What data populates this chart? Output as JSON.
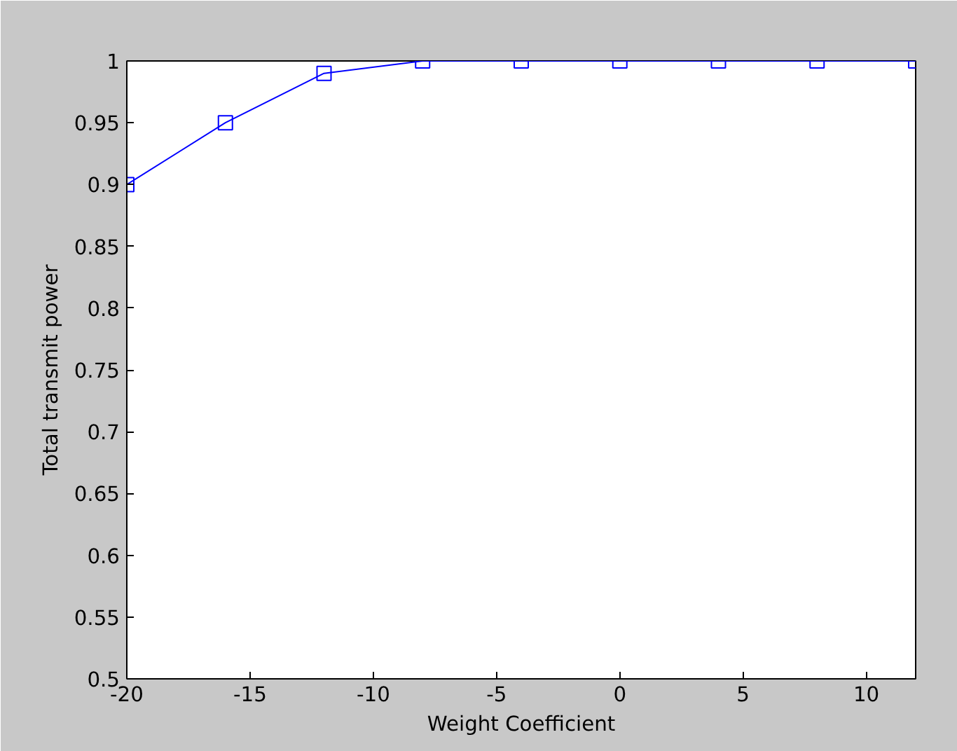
{
  "chart_data": {
    "type": "line",
    "xlabel": "Weight Coefficient",
    "ylabel": "Total transmit power",
    "x": [
      -20,
      -16,
      -12,
      -8,
      -4,
      0,
      4,
      8,
      12
    ],
    "series": [
      {
        "color": "#0000ff",
        "values": [
          0.9,
          0.95,
          0.99,
          1,
          1,
          1,
          1,
          1,
          1
        ]
      }
    ],
    "xlim": [
      -20,
      12
    ],
    "ylim": [
      0.5,
      1
    ],
    "xticks": [
      -20,
      -15,
      -10,
      -5,
      0,
      5,
      10
    ],
    "yticks": [
      0.5,
      0.55,
      0.6,
      0.65,
      0.7,
      0.75,
      0.8,
      0.85,
      0.9,
      0.95,
      1
    ],
    "grid": false,
    "marker": "square",
    "line_style": "solid"
  }
}
